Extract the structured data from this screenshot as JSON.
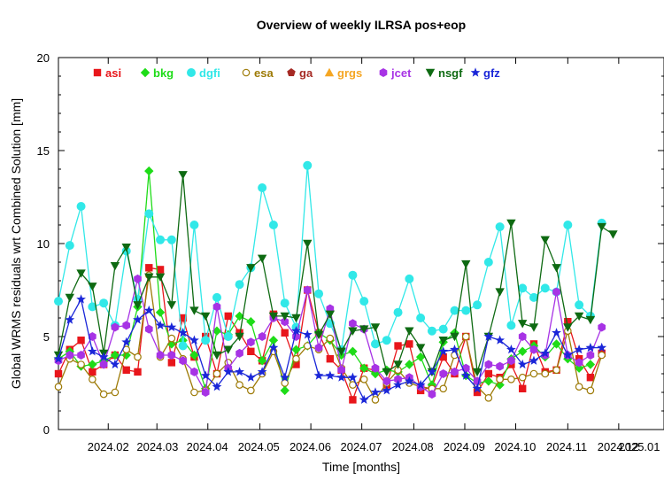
{
  "chart_data": {
    "type": "line",
    "title": "Overview of weekly ILRSA pos+eop",
    "xlabel": "Time [months]",
    "ylabel": "Global WRMS residuals wrt Combined Solution [mm]",
    "ylim": [
      0,
      20
    ],
    "yticks": [
      0,
      5,
      10,
      15,
      20
    ],
    "x_range_weeks": [
      0,
      53.5
    ],
    "x_tick_labels": [
      "2024.02",
      "2024.03",
      "2024.04",
      "2024.05",
      "2024.06",
      "2024.07",
      "2024.08",
      "2024.09",
      "2024.10",
      "2024.11",
      "2024.12",
      "2025.01"
    ],
    "x_tick_weeks": [
      4.4,
      8.7,
      13.2,
      17.8,
      22.3,
      26.8,
      31.4,
      35.9,
      40.4,
      45,
      49.5,
      54
    ],
    "legend_position": "top",
    "series": [
      {
        "name": "asi",
        "color": "#e8161b",
        "marker": "square",
        "values": [
          3.0,
          4.3,
          4.8,
          3.1,
          3.5,
          4.0,
          3.2,
          3.1,
          8.7,
          8.6,
          3.6,
          6.0,
          3.9,
          5.0,
          3.0,
          6.1,
          5.2,
          4.2,
          3.7,
          6.2,
          5.2,
          3.5,
          7.5,
          5.2,
          3.8,
          3.2,
          1.6,
          3.3,
          3.2,
          2.4,
          4.5,
          4.6,
          2.1,
          2.3,
          3.9,
          3.0,
          5.0,
          2.0,
          3.0,
          2.8,
          3.5,
          2.2,
          4.6,
          3.1,
          3.2,
          5.8,
          3.8,
          2.8,
          4.1
        ]
      },
      {
        "name": "bkg",
        "color": "#1edc18",
        "marker": "diamond",
        "values": [
          3.8,
          4.2,
          3.4,
          3.5,
          3.7,
          4.0,
          4.0,
          6.6,
          13.9,
          6.3,
          4.6,
          4.8,
          4.0,
          2.2,
          5.3,
          5.1,
          6.1,
          5.8,
          3.7,
          4.8,
          2.1,
          4.3,
          4.5,
          5.2,
          4.8,
          4.0,
          4.2,
          3.3,
          3.0,
          3.2,
          3.1,
          3.5,
          3.9,
          2.4,
          4.7,
          5.2,
          2.9,
          2.5,
          2.6,
          2.4,
          3.8,
          4.2,
          4.5,
          3.9,
          4.6,
          3.8,
          3.3,
          3.5
        ]
      },
      {
        "name": "dgfi",
        "color": "#31e8e8",
        "marker": "circle",
        "values": [
          6.9,
          9.9,
          12.0,
          6.6,
          6.8,
          5.6,
          9.6,
          7.0,
          11.6,
          10.2,
          10.2,
          4.5,
          11.0,
          4.8,
          7.1,
          5.0,
          7.8,
          8.7,
          13.0,
          11.0,
          6.8,
          5.5,
          14.2,
          7.3,
          5.7,
          4.3,
          8.3,
          6.9,
          4.6,
          4.8,
          6.3,
          8.1,
          6.0,
          5.3,
          5.4,
          6.4,
          6.4,
          6.7,
          9.0,
          10.9,
          5.6,
          7.6,
          7.1,
          7.6,
          7.4,
          11.0,
          6.7,
          6.1,
          11.1
        ]
      },
      {
        "name": "esa",
        "color": "#9d7a06",
        "marker": "open-circle",
        "values": [
          2.3,
          3.8,
          3.5,
          2.7,
          1.9,
          2.0,
          4.3,
          3.9,
          8.3,
          3.9,
          4.9,
          3.8,
          2.0,
          2.1,
          3.0,
          3.6,
          2.4,
          2.1,
          3.0,
          4.2,
          2.5,
          3.8,
          4.5,
          4.3,
          4.9,
          3.3,
          2.4,
          2.7,
          1.6,
          2.5,
          3.2,
          2.5,
          2.3,
          2.2,
          2.2,
          4.0,
          5.0,
          2.3,
          1.7,
          2.7,
          2.7,
          2.8,
          3.0,
          3.0,
          3.2,
          5.3,
          2.3,
          2.1,
          4.0
        ]
      },
      {
        "name": "ga",
        "color": "#a62a24",
        "marker": "pentagon",
        "values": []
      },
      {
        "name": "grgs",
        "color": "#f5a623",
        "marker": "triangle",
        "values": []
      },
      {
        "name": "jcet",
        "color": "#a733e5",
        "marker": "hexagon",
        "values": [
          3.7,
          4.0,
          4.0,
          5.0,
          3.5,
          5.5,
          5.6,
          8.1,
          5.4,
          4.0,
          4.0,
          3.7,
          3.1,
          2.0,
          6.6,
          3.3,
          4.1,
          4.7,
          5.0,
          6.0,
          5.8,
          5.0,
          7.5,
          4.4,
          6.5,
          3.2,
          5.7,
          5.4,
          3.3,
          2.6,
          2.7,
          2.8,
          2.3,
          1.9,
          3.0,
          3.1,
          3.3,
          2.6,
          3.5,
          3.4,
          3.7,
          5.0,
          4.3,
          4.0,
          7.4,
          4.0,
          3.6,
          4.0,
          5.5
        ]
      },
      {
        "name": "nsgf",
        "color": "#0e6a12",
        "marker": "triangle-down",
        "values": [
          4.0,
          7.1,
          8.4,
          7.7,
          4.1,
          8.8,
          9.8,
          6.7,
          8.2,
          8.2,
          6.7,
          13.7,
          6.4,
          6.1,
          4.0,
          4.3,
          5.0,
          8.7,
          9.2,
          6.1,
          6.1,
          6.0,
          10.0,
          5.1,
          6.2,
          4.2,
          5.3,
          5.4,
          5.5,
          3.1,
          3.5,
          5.3,
          4.4,
          3.1,
          4.8,
          5.0,
          8.9,
          3.1,
          5.0,
          7.4,
          11.1,
          5.7,
          5.5,
          10.2,
          8.7,
          5.5,
          6.1,
          5.9,
          10.9,
          10.5
        ]
      },
      {
        "name": "gfz",
        "color": "#1a26d8",
        "marker": "star",
        "values": [
          3.8,
          5.9,
          7.0,
          4.2,
          3.9,
          3.5,
          4.7,
          5.9,
          6.4,
          5.6,
          5.5,
          5.2,
          4.8,
          2.9,
          2.3,
          3.1,
          3.1,
          2.8,
          3.1,
          4.4,
          2.8,
          5.3,
          5.1,
          2.9,
          2.9,
          2.8,
          2.8,
          1.6,
          2.0,
          2.1,
          2.4,
          2.6,
          2.4,
          3.1,
          4.2,
          4.3,
          2.9,
          2.2,
          5.0,
          4.8,
          4.3,
          3.5,
          3.7,
          4.1,
          5.2,
          4.0,
          4.3,
          4.4,
          4.4
        ]
      }
    ]
  }
}
